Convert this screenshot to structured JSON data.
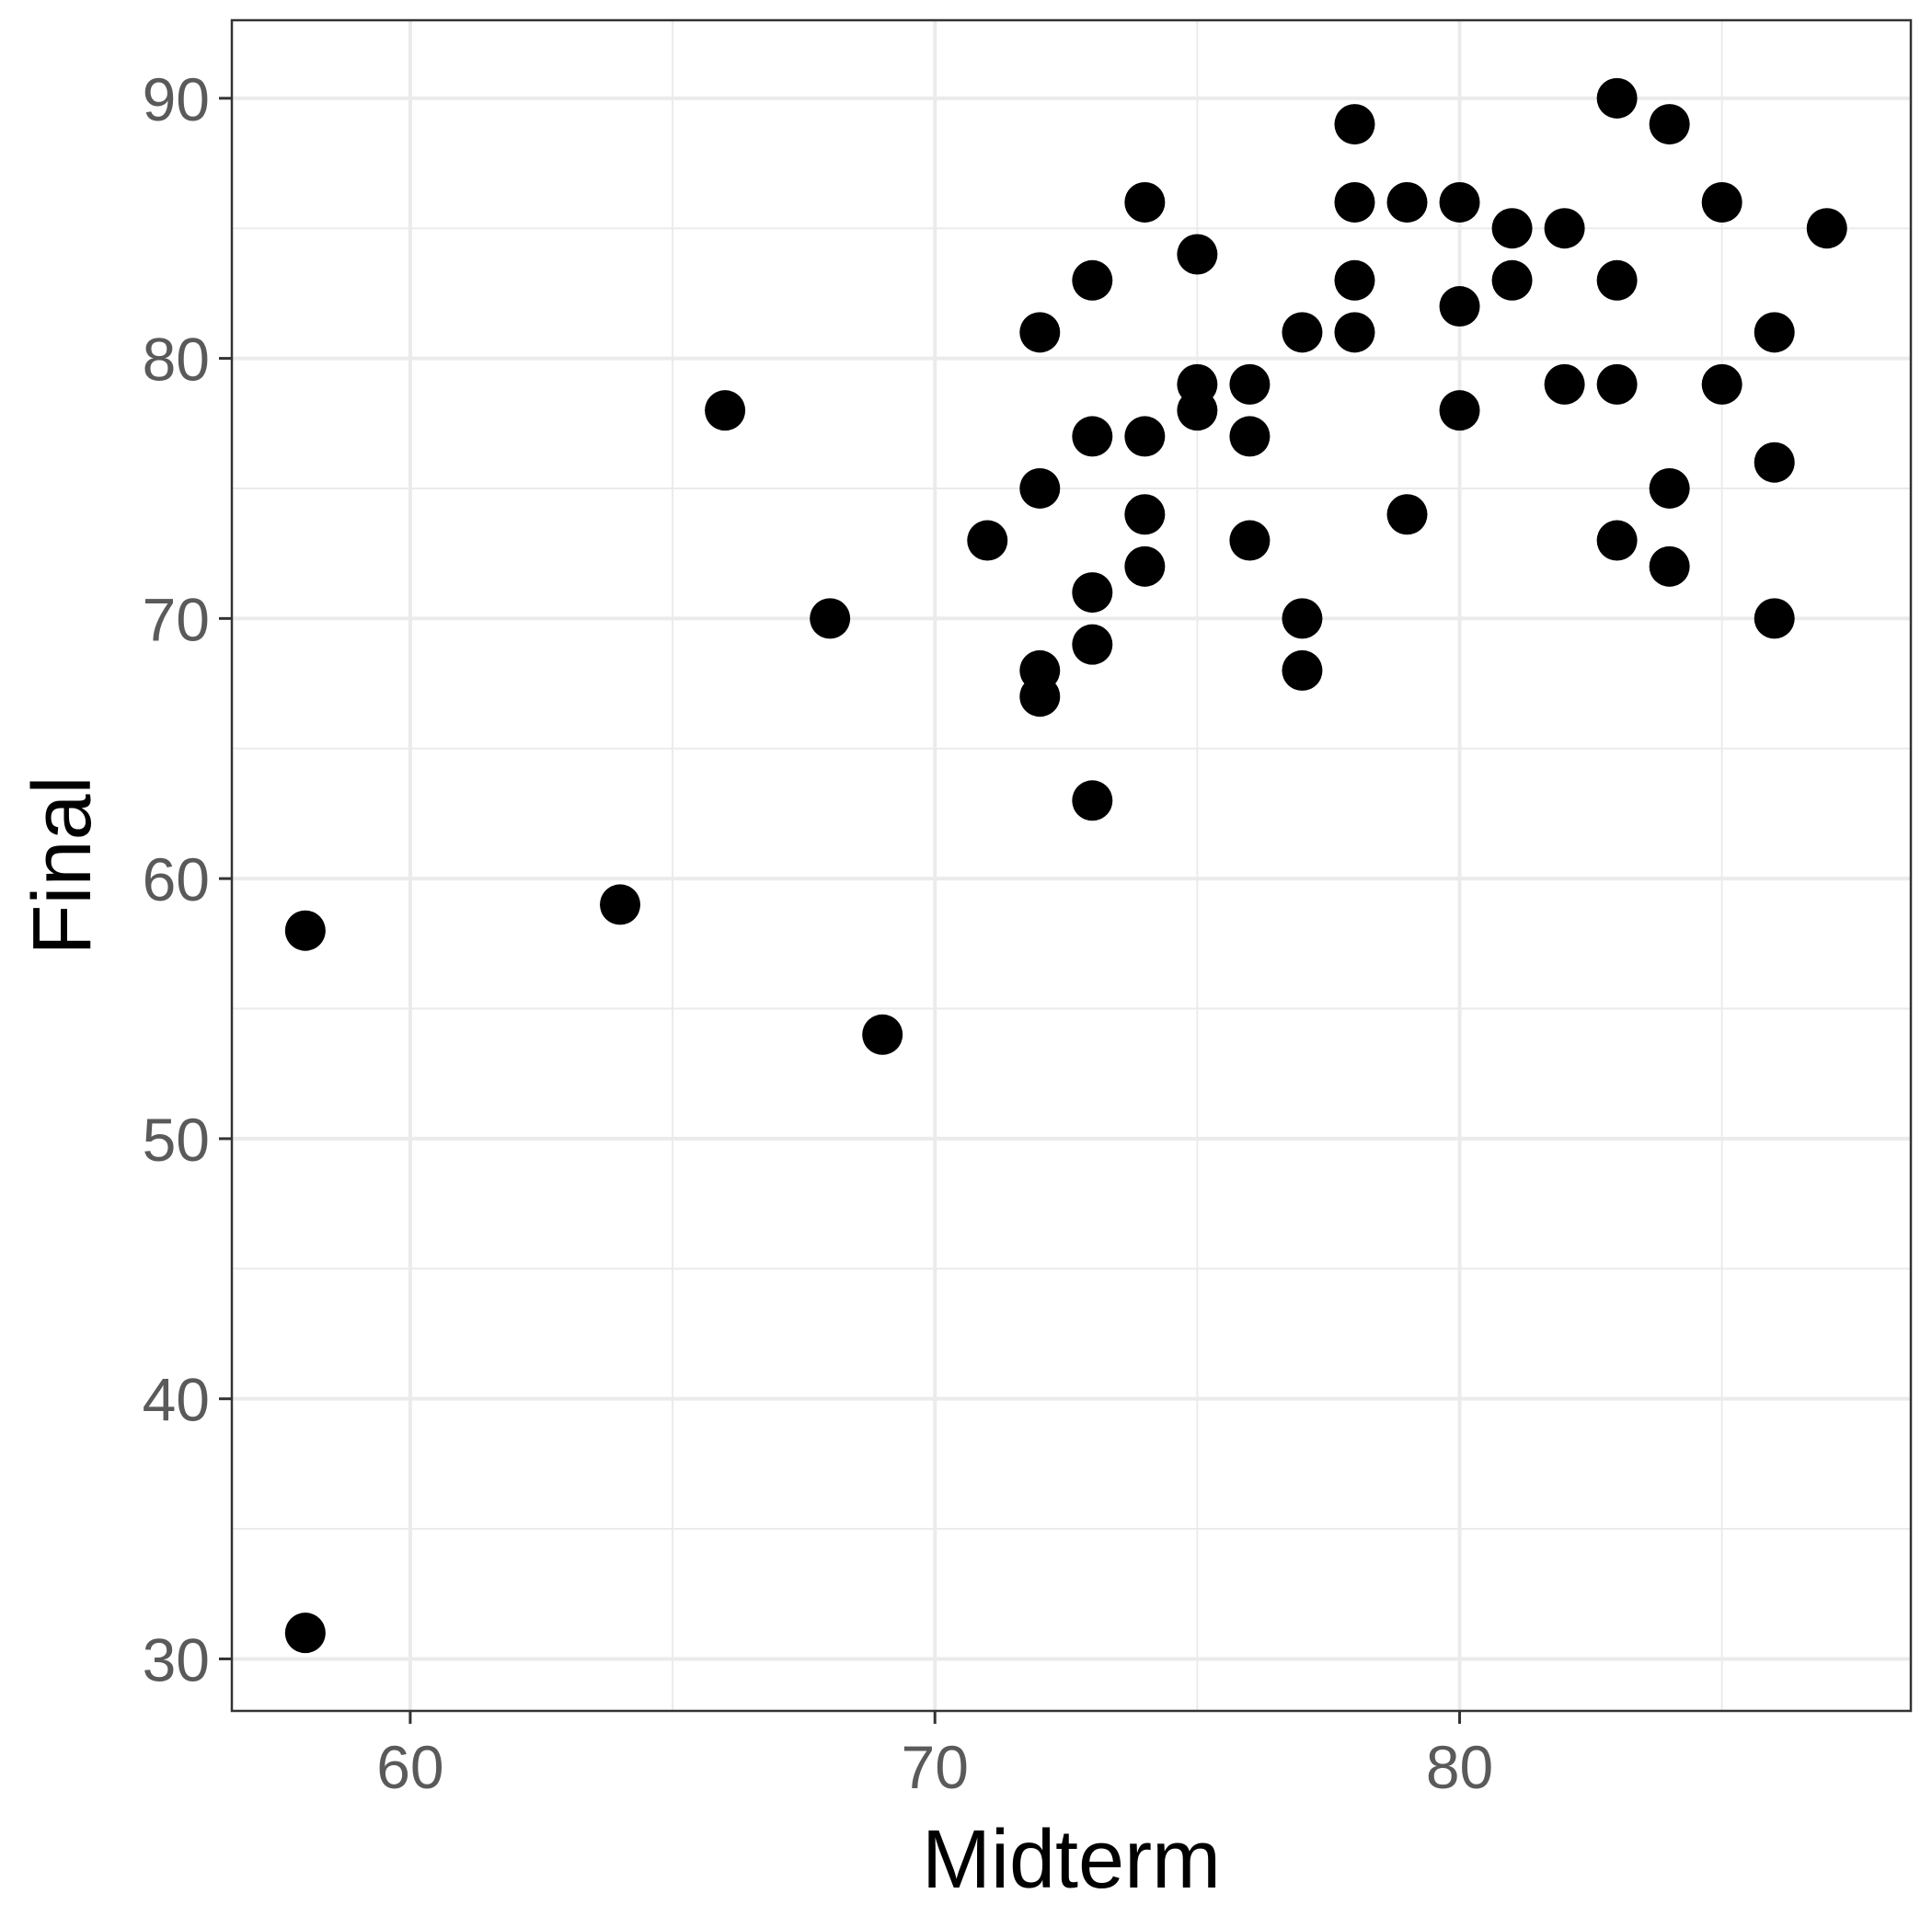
{
  "chart_data": {
    "type": "scatter",
    "title": "",
    "xlabel": "Midterm",
    "ylabel": "Final",
    "xlim": [
      56.6,
      88.6
    ],
    "ylim": [
      28.0,
      93.0
    ],
    "x_ticks": [
      60,
      70,
      80
    ],
    "y_ticks": [
      30,
      40,
      50,
      60,
      70,
      80,
      90
    ],
    "x_tick_labels": [
      "60",
      "70",
      "80"
    ],
    "y_tick_labels": [
      "30",
      "40",
      "50",
      "60",
      "70",
      "80",
      "90"
    ],
    "x_minor_ticks": [
      65,
      75,
      85
    ],
    "y_minor_ticks": [
      35,
      45,
      55,
      65,
      75,
      85
    ],
    "grid": true,
    "legend": "none",
    "colors": {
      "point": "#000000",
      "grid": "#ebebeb",
      "panel_border": "#333333",
      "tick_label": "#5a5a5a"
    },
    "points": [
      {
        "x": 58,
        "y": 58
      },
      {
        "x": 58,
        "y": 31
      },
      {
        "x": 64,
        "y": 59
      },
      {
        "x": 66,
        "y": 78
      },
      {
        "x": 68,
        "y": 70
      },
      {
        "x": 69,
        "y": 54
      },
      {
        "x": 71,
        "y": 73
      },
      {
        "x": 72,
        "y": 81
      },
      {
        "x": 72,
        "y": 75
      },
      {
        "x": 72,
        "y": 68
      },
      {
        "x": 72,
        "y": 67
      },
      {
        "x": 73,
        "y": 83
      },
      {
        "x": 73,
        "y": 77
      },
      {
        "x": 73,
        "y": 71
      },
      {
        "x": 73,
        "y": 69
      },
      {
        "x": 73,
        "y": 63
      },
      {
        "x": 74,
        "y": 86
      },
      {
        "x": 74,
        "y": 77
      },
      {
        "x": 74,
        "y": 74
      },
      {
        "x": 74,
        "y": 72
      },
      {
        "x": 75,
        "y": 84
      },
      {
        "x": 75,
        "y": 79
      },
      {
        "x": 75,
        "y": 78
      },
      {
        "x": 76,
        "y": 79
      },
      {
        "x": 76,
        "y": 77
      },
      {
        "x": 76,
        "y": 73
      },
      {
        "x": 77,
        "y": 81
      },
      {
        "x": 77,
        "y": 70
      },
      {
        "x": 77,
        "y": 68
      },
      {
        "x": 78,
        "y": 89
      },
      {
        "x": 78,
        "y": 86
      },
      {
        "x": 78,
        "y": 83
      },
      {
        "x": 78,
        "y": 81
      },
      {
        "x": 79,
        "y": 86
      },
      {
        "x": 79,
        "y": 74
      },
      {
        "x": 80,
        "y": 86
      },
      {
        "x": 80,
        "y": 82
      },
      {
        "x": 80,
        "y": 78
      },
      {
        "x": 81,
        "y": 85
      },
      {
        "x": 81,
        "y": 83
      },
      {
        "x": 82,
        "y": 85
      },
      {
        "x": 82,
        "y": 79
      },
      {
        "x": 83,
        "y": 90
      },
      {
        "x": 83,
        "y": 83
      },
      {
        "x": 83,
        "y": 79
      },
      {
        "x": 83,
        "y": 73
      },
      {
        "x": 84,
        "y": 89
      },
      {
        "x": 84,
        "y": 75
      },
      {
        "x": 84,
        "y": 72
      },
      {
        "x": 85,
        "y": 86
      },
      {
        "x": 85,
        "y": 79
      },
      {
        "x": 86,
        "y": 81
      },
      {
        "x": 86,
        "y": 76
      },
      {
        "x": 86,
        "y": 70
      },
      {
        "x": 87,
        "y": 85
      }
    ]
  }
}
